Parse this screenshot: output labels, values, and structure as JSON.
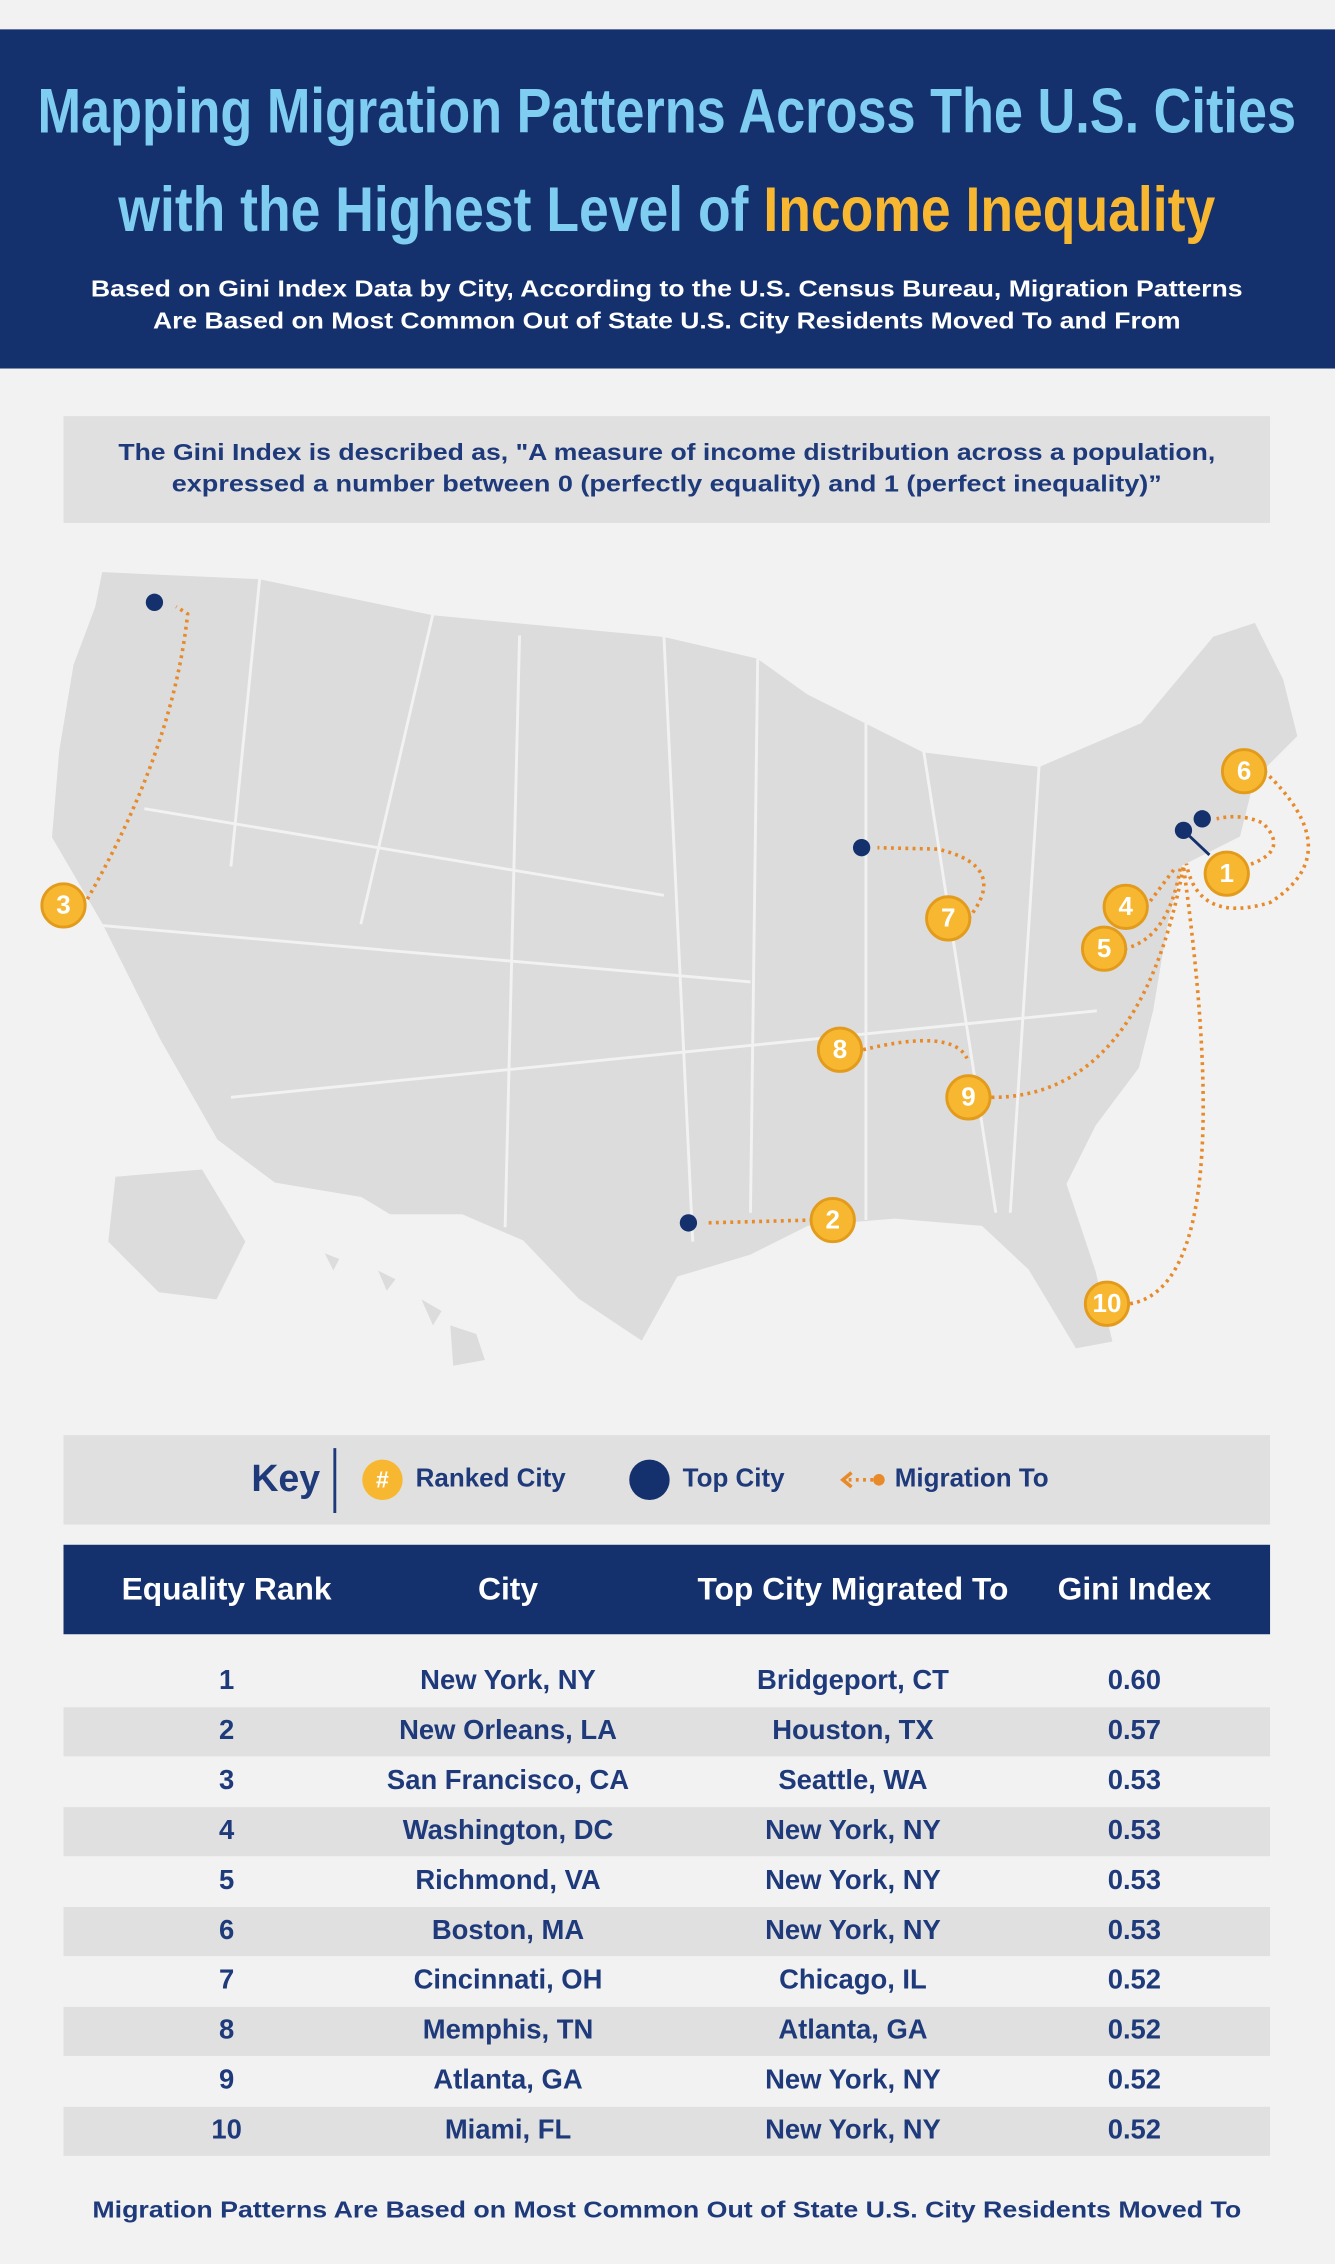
{
  "header": {
    "title_line1": "Mapping Migration Patterns Across The U.S. Cities",
    "title_line2_start": "with the Highest Level of ",
    "title_line2_highlight": "Income Inequality",
    "subtitle_line1": "Based on Gini Index Data by City, According to the U.S. Census Bureau, Migration Patterns",
    "subtitle_line2": "Are Based on Most Common Out of State U.S. City Residents Moved To and From"
  },
  "note": {
    "line1": "The Gini Index is described as, \"A measure of income distribution across a population,",
    "line2": "expressed a number between 0 (perfectly equality) and 1 (perfect inequality)”"
  },
  "key": {
    "title": "Key",
    "rank_symbol": "#",
    "ranked_city": "Ranked City",
    "top_city": "Top City",
    "migration_to": "Migration To"
  },
  "table": {
    "headers": [
      "Equality Rank",
      "City",
      "Top City Migrated To",
      "Gini Index"
    ],
    "rows": [
      [
        "1",
        "New York, NY",
        "Bridgeport, CT",
        "0.60"
      ],
      [
        "2",
        "New Orleans, LA",
        "Houston, TX",
        "0.57"
      ],
      [
        "3",
        "San Francisco, CA",
        "Seattle, WA",
        "0.53"
      ],
      [
        "4",
        "Washington, DC",
        "New York, NY",
        "0.53"
      ],
      [
        "5",
        "Richmond, VA",
        "New York, NY",
        "0.53"
      ],
      [
        "6",
        "Boston, MA",
        "New York, NY",
        "0.53"
      ],
      [
        "7",
        "Cincinnati, OH",
        "Chicago, IL",
        "0.52"
      ],
      [
        "8",
        "Memphis, TN",
        "Atlanta, GA",
        "0.52"
      ],
      [
        "9",
        "Atlanta, GA",
        "New York, NY",
        "0.52"
      ],
      [
        "10",
        "Miami, FL",
        "New York, NY",
        "0.52"
      ]
    ]
  },
  "footer": "Migration Patterns Are Based on Most Common Out of State U.S. City Residents Moved To"
}
